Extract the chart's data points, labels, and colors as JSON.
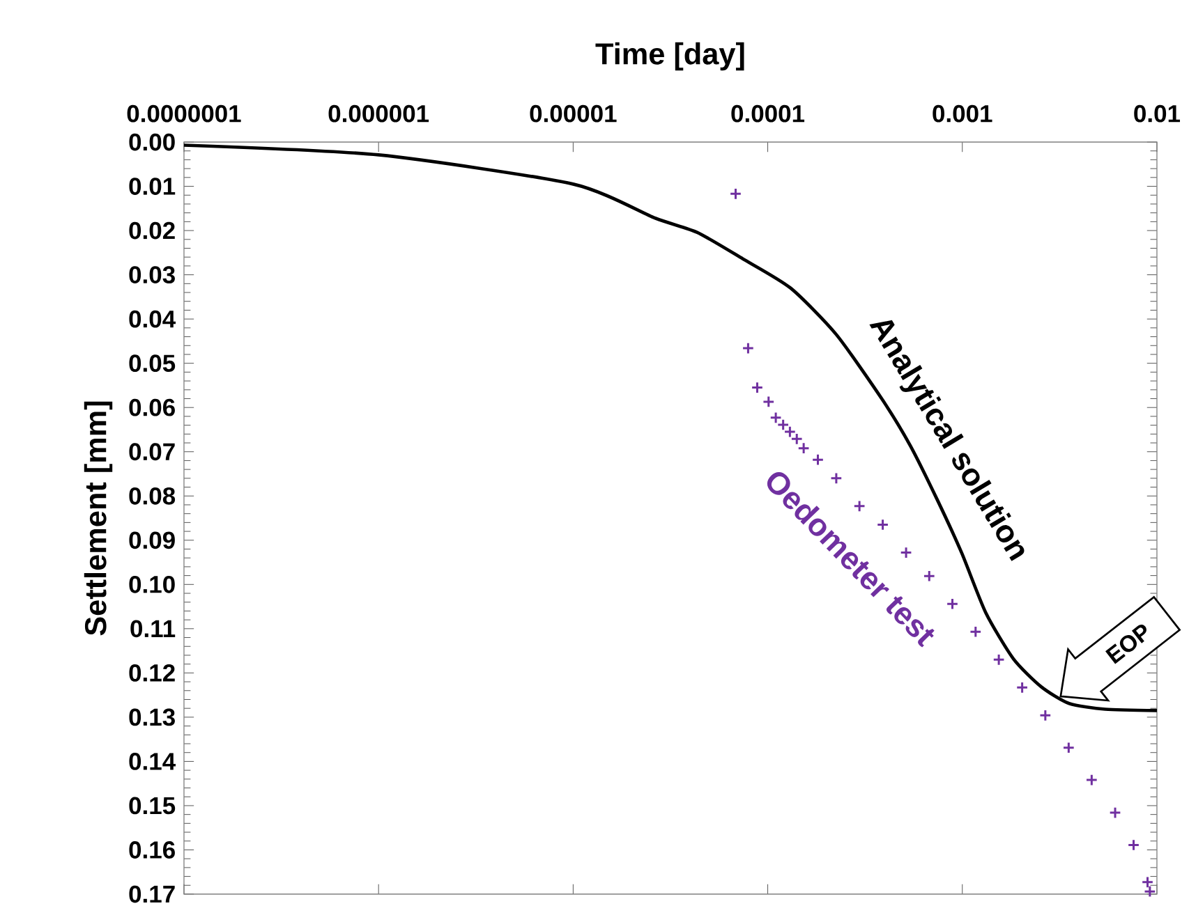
{
  "chart_data": {
    "type": "line",
    "xlabel": "Time [day]",
    "ylabel": "Settlement [mm]",
    "log": "x",
    "xlim": [
      1e-07,
      0.01
    ],
    "xticks": [
      {
        "value": 1e-07,
        "label": "0.0000001"
      },
      {
        "value": 1e-06,
        "label": "0.000001"
      },
      {
        "value": 1e-05,
        "label": "0.00001"
      },
      {
        "value": 0.0001,
        "label": "0.0001"
      },
      {
        "value": 0.001,
        "label": "0.001"
      },
      {
        "value": 0.01,
        "label": "0.01"
      }
    ],
    "ylim": [
      0.17,
      0
    ],
    "yticks": [
      {
        "value": 0,
        "label": "0.00"
      },
      {
        "value": 0.01,
        "label": "0.01"
      },
      {
        "value": 0.02,
        "label": "0.02"
      },
      {
        "value": 0.03,
        "label": "0.03"
      },
      {
        "value": 0.04,
        "label": "0.04"
      },
      {
        "value": 0.05,
        "label": "0.05"
      },
      {
        "value": 0.06,
        "label": "0.06"
      },
      {
        "value": 0.07,
        "label": "0.07"
      },
      {
        "value": 0.08,
        "label": "0.08"
      },
      {
        "value": 0.09,
        "label": "0.09"
      },
      {
        "value": 0.1,
        "label": "0.10"
      },
      {
        "value": 0.11,
        "label": "0.11"
      },
      {
        "value": 0.12,
        "label": "0.12"
      },
      {
        "value": 0.13,
        "label": "0.13"
      },
      {
        "value": 0.14,
        "label": "0.14"
      },
      {
        "value": 0.15,
        "label": "0.15"
      },
      {
        "value": 0.16,
        "label": "0.16"
      },
      {
        "value": 0.17,
        "label": "0.17"
      }
    ],
    "grid": false,
    "legend": false,
    "series": [
      {
        "name": "Analytical solution",
        "type": "line",
        "color": "#000000",
        "line_style": "solid",
        "marker": "none",
        "x": [
          1e-07,
          1e-06,
          1e-05,
          2.64e-05,
          4.33e-05,
          7.45e-05,
          0.000131,
          0.000225,
          0.000388,
          0.00054,
          0.00075,
          0.000993,
          0.00132,
          0.00183,
          0.00254,
          0.00354,
          0.00543,
          0.01
        ],
        "values": [
          0.0007,
          0.0029,
          0.0095,
          0.0172,
          0.0204,
          0.0264,
          0.033,
          0.0435,
          0.0582,
          0.0686,
          0.0812,
          0.0929,
          0.1064,
          0.1168,
          0.1231,
          0.1269,
          0.1282,
          0.1285
        ]
      },
      {
        "name": "Oedometer test",
        "type": "scatter",
        "color": "#7030a0",
        "marker": "cross",
        "x": [
          6.84e-05,
          7.93e-05,
          8.83e-05,
          0.000101,
          0.00011,
          0.00012,
          0.00013,
          0.000141,
          0.000153,
          0.000181,
          0.000225,
          0.000296,
          0.00039,
          0.000514,
          0.000676,
          0.000889,
          0.00117,
          0.00154,
          0.00203,
          0.00267,
          0.00352,
          0.00462,
          0.0061,
          0.00759,
          0.00895,
          0.0092
        ],
        "values": [
          0.0117,
          0.0466,
          0.0555,
          0.0587,
          0.0623,
          0.0639,
          0.0655,
          0.0671,
          0.0692,
          0.0718,
          0.076,
          0.0823,
          0.0865,
          0.0928,
          0.0981,
          0.1044,
          0.1107,
          0.117,
          0.1233,
          0.1296,
          0.1369,
          0.1442,
          0.1516,
          0.1589,
          0.1673,
          0.1694
        ]
      }
    ],
    "annotations": [
      {
        "text": "EOP",
        "x": 0.0032,
        "y": 0.1253
      }
    ]
  }
}
